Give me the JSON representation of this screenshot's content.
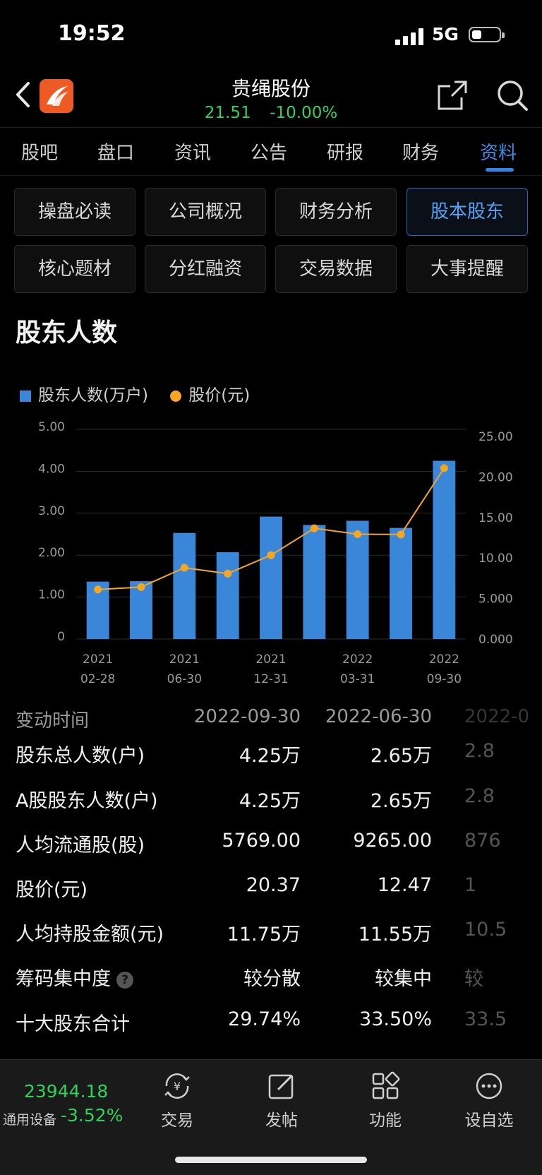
{
  "status": {
    "time": "19:52",
    "network": "5G"
  },
  "header": {
    "title": "贵绳股份",
    "price": "21.51",
    "change": "-10.00%"
  },
  "tabs": [
    "股吧",
    "盘口",
    "资讯",
    "公告",
    "研报",
    "财务",
    "资料"
  ],
  "active_tab": "资料",
  "subtabs": [
    "操盘必读",
    "公司概况",
    "财务分析",
    "股本股东",
    "核心题材",
    "分红融资",
    "交易数据",
    "大事提醒"
  ],
  "active_subtab": "股本股东",
  "section_title": "股东人数",
  "colors": {
    "bar": "#3a86d8",
    "line": "#f5a623",
    "up": "#2fd35c",
    "active": "#3d8fe6"
  },
  "chart_data": {
    "type": "bar",
    "title": "股东人数",
    "legend": [
      {
        "name": "股东人数(万户)",
        "icon": "square"
      },
      {
        "name": "股价(元)",
        "icon": "dot"
      }
    ],
    "left_ticks": [
      "5.00",
      "4.00",
      "3.00",
      "2.00",
      "1.00",
      "0"
    ],
    "right_ticks": [
      "25.00",
      "20.00",
      "15.00",
      "10.00",
      "5.000",
      "0.000"
    ],
    "ylim_left": [
      0,
      5
    ],
    "ylim_right": [
      0,
      25
    ],
    "x_labels": [
      {
        "idx": 0,
        "year": "2021",
        "date": "02-28"
      },
      {
        "idx": 2,
        "year": "2021",
        "date": "06-30"
      },
      {
        "idx": 4,
        "year": "2021",
        "date": "12-31"
      },
      {
        "idx": 6,
        "year": "2022",
        "date": "03-31"
      },
      {
        "idx": 8,
        "year": "2022",
        "date": "09-30"
      }
    ],
    "series": [
      {
        "name": "股东人数(万户)",
        "type": "bar",
        "values": [
          1.37,
          1.38,
          2.53,
          2.07,
          2.92,
          2.72,
          2.82,
          2.65,
          4.25
        ]
      },
      {
        "name": "股价(元)",
        "type": "line",
        "values": [
          5.9,
          6.2,
          8.5,
          7.8,
          10.0,
          13.2,
          12.5,
          12.47,
          20.37
        ]
      }
    ]
  },
  "table": {
    "header": {
      "label": "变动时间",
      "c1": "2022-09-30",
      "c2": "2022-06-30",
      "c3": "2022-0"
    },
    "rows": [
      {
        "label": "股东总人数(户)",
        "c1": "4.25万",
        "c2": "2.65万",
        "c3": "2.8"
      },
      {
        "label": "A股股东人数(户)",
        "c1": "4.25万",
        "c2": "2.65万",
        "c3": "2.8"
      },
      {
        "label": "人均流通股(股)",
        "c1": "5769.00",
        "c2": "9265.00",
        "c3": "876"
      },
      {
        "label": "股价(元)",
        "c1": "20.37",
        "c2": "12.47",
        "c3": "1"
      },
      {
        "label": "人均持股金额(元)",
        "c1": "11.75万",
        "c2": "11.55万",
        "c3": "10.5"
      },
      {
        "label": "筹码集中度",
        "c1": "较分散",
        "c2": "较集中",
        "c3": "较"
      },
      {
        "label": "十大股东合计",
        "c1": "29.74%",
        "c2": "33.50%",
        "c3": "33.5"
      }
    ]
  },
  "bottom": {
    "index_value": "23944.18",
    "index_label": "通用设备",
    "index_change": "-3.52%",
    "nav": [
      "交易",
      "发帖",
      "功能",
      "设自选"
    ]
  }
}
